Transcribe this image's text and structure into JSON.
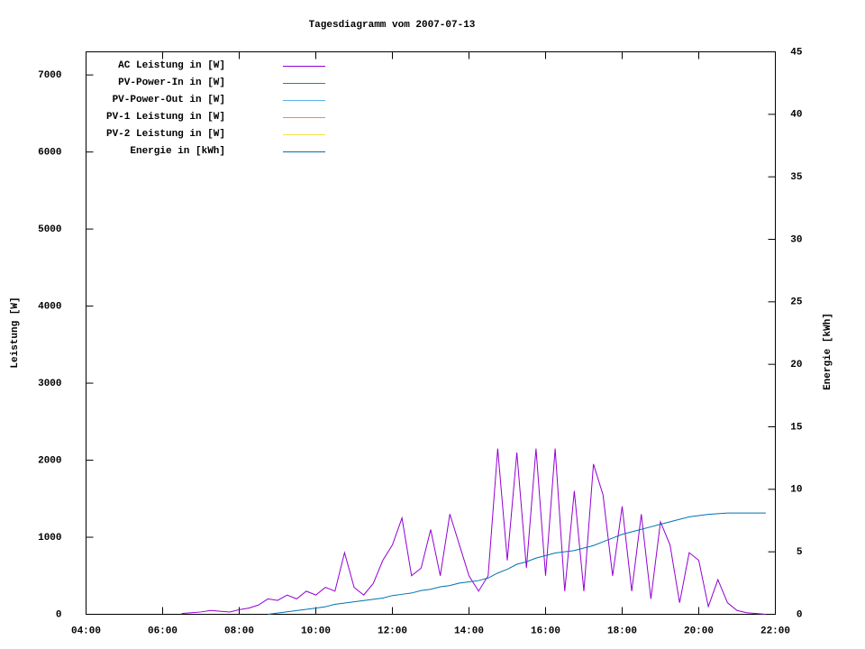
{
  "chart_data": {
    "type": "line",
    "title": "Tagesdiagramm vom 2007-07-13",
    "y_label": "Leistung [W]",
    "y2_label": "Energie [kWh]",
    "legend": "top-left",
    "xlim": [
      4,
      22
    ],
    "xticks": [
      {
        "value": 4,
        "label": "04:00"
      },
      {
        "value": 6,
        "label": "06:00"
      },
      {
        "value": 8,
        "label": "08:00"
      },
      {
        "value": 10,
        "label": "10:00"
      },
      {
        "value": 12,
        "label": "12:00"
      },
      {
        "value": 14,
        "label": "14:00"
      },
      {
        "value": 16,
        "label": "16:00"
      },
      {
        "value": 18,
        "label": "18:00"
      },
      {
        "value": 20,
        "label": "20:00"
      },
      {
        "value": 22,
        "label": "22:00"
      }
    ],
    "ylim": [
      0,
      7300
    ],
    "yticks": [
      0,
      1000,
      2000,
      3000,
      4000,
      5000,
      6000,
      7000
    ],
    "y2lim": [
      0,
      45
    ],
    "y2ticks": [
      0,
      5,
      10,
      15,
      20,
      25,
      30,
      35,
      40,
      45
    ],
    "x": [
      6.5,
      6.75,
      7,
      7.25,
      7.5,
      7.75,
      8,
      8.25,
      8.5,
      8.75,
      9,
      9.25,
      9.5,
      9.75,
      10,
      10.25,
      10.5,
      10.75,
      11,
      11.25,
      11.5,
      11.75,
      12,
      12.25,
      12.5,
      12.75,
      13,
      13.25,
      13.5,
      13.75,
      14,
      14.25,
      14.5,
      14.75,
      15,
      15.25,
      15.5,
      15.75,
      16,
      16.25,
      16.5,
      16.75,
      17,
      17.25,
      17.5,
      17.75,
      18,
      18.25,
      18.5,
      18.75,
      19,
      19.25,
      19.5,
      19.75,
      20,
      20.25,
      20.5,
      20.75,
      21,
      21.25,
      21.5,
      21.75
    ],
    "series": [
      {
        "name": "AC Leistung in [W]",
        "color": "#9400d3",
        "values": [
          10,
          20,
          30,
          50,
          40,
          30,
          60,
          80,
          120,
          200,
          180,
          250,
          200,
          300,
          250,
          350,
          300,
          800,
          350,
          250,
          400,
          700,
          900,
          1250,
          500,
          600,
          1100,
          500,
          1300,
          900,
          500,
          300,
          500,
          2150,
          700,
          2100,
          600,
          2150,
          500,
          2150,
          300,
          1600,
          300,
          1950,
          1550,
          500,
          1400,
          300,
          1300,
          200,
          1200,
          900,
          150,
          800,
          700,
          100,
          450,
          150,
          50,
          20,
          10,
          0
        ]
      },
      {
        "name": "PV-Power-In in [W]",
        "color": "#009e73",
        "values": [
          null,
          null,
          null,
          null,
          null,
          null,
          null,
          null,
          null,
          null,
          null,
          null,
          null,
          null,
          null,
          null,
          null,
          null,
          null,
          null,
          null,
          null,
          null,
          null,
          null,
          null,
          null,
          null,
          null,
          null,
          null,
          null,
          null,
          null,
          null,
          null,
          null,
          null,
          null,
          null,
          null,
          null,
          null,
          null,
          null,
          null,
          null,
          null,
          null,
          null,
          null,
          null,
          null,
          null,
          null,
          null,
          null,
          null,
          null,
          null,
          null,
          null
        ]
      },
      {
        "name": "PV-Power-Out in [W]",
        "color": "#56b4e9",
        "values": [
          null,
          null,
          null,
          null,
          null,
          null,
          null,
          null,
          null,
          null,
          null,
          null,
          null,
          null,
          null,
          null,
          null,
          null,
          null,
          null,
          null,
          null,
          null,
          null,
          null,
          null,
          null,
          null,
          null,
          null,
          null,
          null,
          null,
          null,
          null,
          null,
          null,
          null,
          null,
          null,
          null,
          null,
          null,
          null,
          null,
          null,
          null,
          null,
          null,
          null,
          null,
          null,
          null,
          null,
          null,
          null,
          null,
          null,
          null,
          null,
          null,
          null
        ]
      },
      {
        "name": "PV-1 Leistung in [W]",
        "color": "#e69f00",
        "values": [
          null,
          null,
          null,
          null,
          null,
          null,
          null,
          null,
          null,
          null,
          null,
          null,
          null,
          null,
          null,
          null,
          null,
          null,
          null,
          null,
          null,
          null,
          null,
          null,
          null,
          null,
          null,
          null,
          null,
          null,
          null,
          null,
          null,
          null,
          null,
          null,
          null,
          null,
          null,
          null,
          null,
          null,
          null,
          null,
          null,
          null,
          null,
          null,
          null,
          null,
          null,
          null,
          null,
          null,
          null,
          null,
          null,
          null,
          null,
          null,
          null,
          null
        ]
      },
      {
        "name": "PV-2 Leistung in [W]",
        "color": "#f0e442",
        "values": [
          null,
          null,
          null,
          null,
          null,
          null,
          null,
          null,
          null,
          null,
          null,
          null,
          null,
          null,
          null,
          null,
          null,
          null,
          null,
          null,
          null,
          null,
          null,
          null,
          null,
          null,
          null,
          null,
          null,
          null,
          null,
          null,
          null,
          null,
          null,
          null,
          null,
          null,
          null,
          null,
          null,
          null,
          null,
          null,
          null,
          null,
          null,
          null,
          null,
          null,
          null,
          null,
          null,
          null,
          null,
          null,
          null,
          null,
          null,
          null,
          null,
          null
        ]
      },
      {
        "name": "Energie in [kWh]",
        "color": "#0072b2",
        "axis": "y2",
        "values": [
          null,
          null,
          null,
          null,
          null,
          null,
          null,
          null,
          null,
          0,
          0.1,
          0.2,
          0.3,
          0.4,
          0.5,
          0.6,
          0.8,
          0.9,
          1.0,
          1.1,
          1.2,
          1.3,
          1.5,
          1.6,
          1.7,
          1.9,
          2.0,
          2.2,
          2.3,
          2.5,
          2.6,
          2.7,
          2.9,
          3.3,
          3.6,
          4.0,
          4.2,
          4.5,
          4.7,
          4.9,
          5.0,
          5.1,
          5.3,
          5.5,
          5.8,
          6.1,
          6.4,
          6.6,
          6.8,
          7.0,
          7.2,
          7.4,
          7.6,
          7.8,
          7.9,
          8.0,
          8.05,
          8.1,
          8.1,
          8.1,
          8.1,
          8.1
        ]
      }
    ]
  }
}
